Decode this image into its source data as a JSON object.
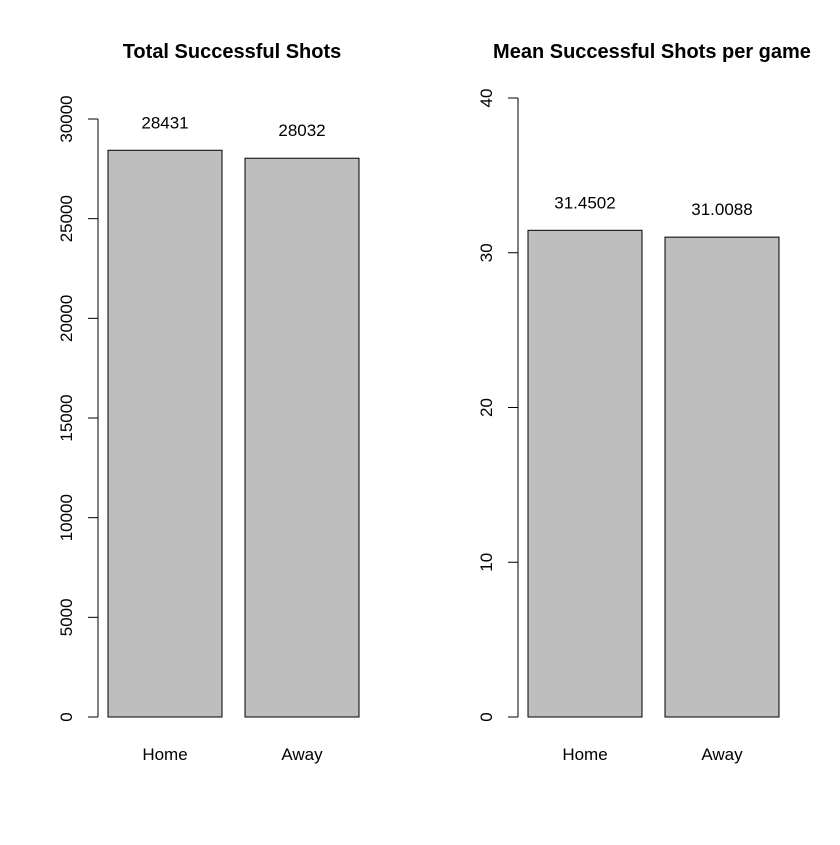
{
  "colors": {
    "bar_fill": "#bebebe",
    "bar_stroke": "#000000",
    "axis": "#000000",
    "background": "#ffffff"
  },
  "chart_data": [
    {
      "type": "bar",
      "title": "Total Successful Shots",
      "xlabel": "",
      "ylabel": "",
      "categories": [
        "Home",
        "Away"
      ],
      "values": [
        28431,
        28032
      ],
      "data_labels": [
        "28431",
        "28032"
      ],
      "ylim": [
        0,
        30000
      ],
      "yticks": [
        0,
        5000,
        10000,
        15000,
        20000,
        25000,
        30000
      ],
      "ytick_labels": [
        "0",
        "5000",
        "10000",
        "15000",
        "20000",
        "25000",
        "30000"
      ],
      "grid": false,
      "legend": "none"
    },
    {
      "type": "bar",
      "title": "Mean Successful Shots per game",
      "xlabel": "",
      "ylabel": "",
      "categories": [
        "Home",
        "Away"
      ],
      "values": [
        31.4502,
        31.0088
      ],
      "data_labels": [
        "31.4502",
        "31.0088"
      ],
      "ylim": [
        0,
        40
      ],
      "yticks": [
        0,
        10,
        20,
        30,
        40
      ],
      "ytick_labels": [
        "0",
        "10",
        "20",
        "30",
        "40"
      ],
      "grid": false,
      "legend": "none"
    }
  ]
}
